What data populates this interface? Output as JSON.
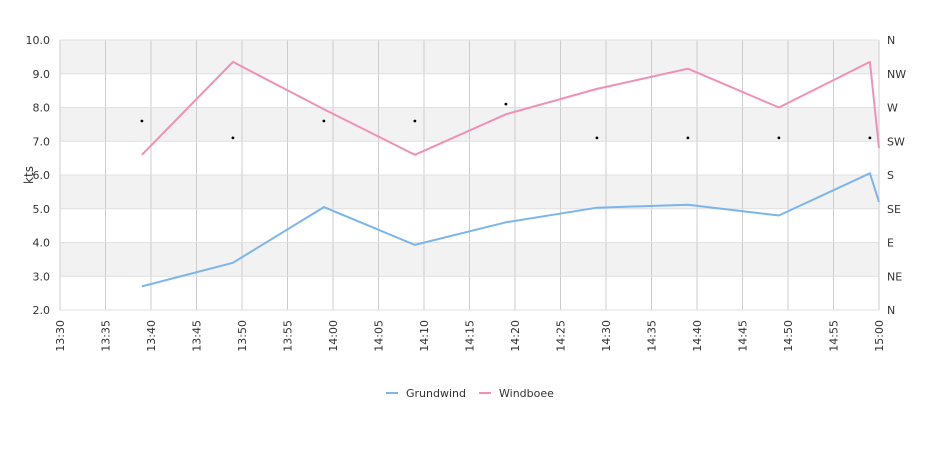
{
  "chart_data": {
    "type": "line",
    "y_axis_label": "kts",
    "y_ticks": [
      "2.0",
      "3.0",
      "4.0",
      "5.0",
      "6.0",
      "7.0",
      "8.0",
      "9.0",
      "10.0"
    ],
    "ylim": [
      2,
      10
    ],
    "x_ticks": [
      "13:30",
      "13:35",
      "13:40",
      "13:45",
      "13:50",
      "13:55",
      "14:00",
      "14:05",
      "14:10",
      "14:15",
      "14:20",
      "14:25",
      "14:30",
      "14:35",
      "14:40",
      "14:45",
      "14:50",
      "14:55",
      "15:00"
    ],
    "x_tick_minutes": [
      0,
      5,
      10,
      15,
      20,
      25,
      30,
      35,
      40,
      45,
      50,
      55,
      60,
      65,
      70,
      75,
      80,
      85,
      90
    ],
    "xlim_minutes": [
      0,
      90
    ],
    "right_axis_ticks": [
      "N",
      "NE",
      "E",
      "SE",
      "S",
      "SW",
      "W",
      "NW",
      "N"
    ],
    "legend_position": "bottom-center",
    "grid": true,
    "series": [
      {
        "name": "Grundwind",
        "color": "#7cb5ec",
        "x": [
          "13:39",
          "13:49",
          "13:59",
          "14:09",
          "14:19",
          "14:29",
          "14:39",
          "14:49",
          "14:59",
          "15:00"
        ],
        "x_minutes": [
          9,
          19,
          29,
          39,
          49,
          59,
          69,
          79,
          89,
          90
        ],
        "values": [
          2.7,
          3.4,
          5.05,
          3.93,
          4.6,
          5.03,
          5.12,
          4.8,
          6.05,
          5.2
        ]
      },
      {
        "name": "Windboee",
        "color": "#f090b8",
        "x": [
          "13:39",
          "13:49",
          "13:59",
          "14:09",
          "14:19",
          "14:29",
          "14:39",
          "14:49",
          "14:59",
          "15:00"
        ],
        "x_minutes": [
          9,
          19,
          29,
          39,
          49,
          59,
          69,
          79,
          89,
          90
        ],
        "values": [
          6.6,
          9.35,
          7.95,
          6.6,
          7.8,
          8.55,
          9.15,
          8.0,
          9.35,
          6.8
        ]
      }
    ],
    "direction_markers": {
      "x_minutes": [
        9,
        19,
        29,
        39,
        49,
        59,
        69,
        79,
        89
      ],
      "values": [
        7.6,
        7.1,
        7.6,
        7.6,
        8.1,
        7.1,
        7.1,
        7.1,
        7.1
      ]
    }
  }
}
